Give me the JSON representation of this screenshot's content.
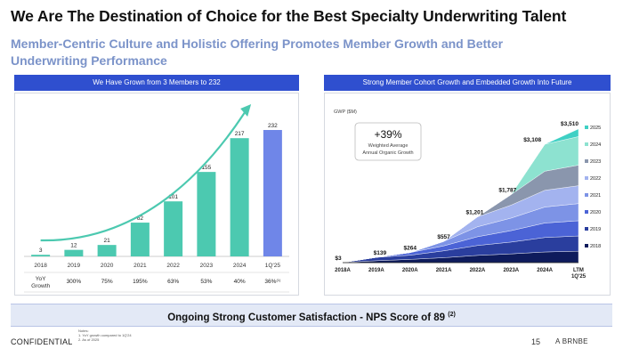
{
  "header": {
    "title": "We Are The Destination of Choice for the Best Specialty Underwriting Talent",
    "subtitle": "Member-Centric Culture and Holistic Offering Promotes Member Growth and Better Underwriting Performance"
  },
  "left_panel": {
    "header": "We Have Grown from 3 Members to 232"
  },
  "right_panel": {
    "header": "Strong Member Cohort Growth and Embedded Growth Into Future"
  },
  "callout": {
    "value": "+39%",
    "line1": "Weighted Average",
    "line2": "Annual Organic Growth"
  },
  "colors": {
    "teal": "#4cc9b0",
    "blue": "#6f86e8",
    "header": "#2f4fcf",
    "navy": "#0e1b5c",
    "cyan": "#3fd0c4"
  },
  "chart_data": [
    {
      "type": "bar",
      "categories": [
        "2018",
        "2019",
        "2020",
        "2021",
        "2022",
        "2023",
        "2024",
        "1Q'25"
      ],
      "values": [
        3,
        12,
        21,
        62,
        101,
        155,
        217,
        232
      ],
      "value_labels": [
        "3",
        "12",
        "21",
        "62",
        "101",
        "155",
        "217",
        "232"
      ],
      "row_label": "YoY\nGrowth",
      "yoy_growth": [
        "",
        "300%",
        "75%",
        "195%",
        "63%",
        "53%",
        "40%",
        "36%"
      ],
      "yoy_footnote_index": 7,
      "yoy_footnote": "(1)",
      "ylim": [
        0,
        250
      ],
      "trend_arrow": true
    },
    {
      "type": "area",
      "unit_label": "GWP ($M)",
      "x": [
        "2018A",
        "2019A",
        "2020A",
        "2021A",
        "2022A",
        "2023A",
        "2024A",
        "LTM 1Q'25"
      ],
      "totals": [
        3,
        139,
        264,
        557,
        1201,
        1787,
        3108,
        3510
      ],
      "total_labels": [
        "$3",
        "$139",
        "$264",
        "$557",
        "$1,201",
        "$1,787",
        "$3,108",
        "$3,510"
      ],
      "ylim": [
        0,
        3600
      ],
      "series": [
        {
          "name": "2018",
          "color": "#0e1b5c",
          "values": [
            3,
            50,
            85,
            130,
            190,
            230,
            280,
            300
          ]
        },
        {
          "name": "2019",
          "color": "#2a3e9e",
          "values": [
            0,
            89,
            110,
            180,
            260,
            310,
            380,
            400
          ]
        },
        {
          "name": "2020",
          "color": "#4b63d6",
          "values": [
            0,
            0,
            69,
            130,
            230,
            300,
            380,
            400
          ]
        },
        {
          "name": "2021",
          "color": "#7d93e6",
          "values": [
            0,
            0,
            0,
            117,
            261,
            330,
            420,
            450
          ]
        },
        {
          "name": "2022",
          "color": "#a3b3ef",
          "values": [
            0,
            0,
            0,
            0,
            260,
            340,
            440,
            470
          ]
        },
        {
          "name": "2023",
          "color": "#8a96ad",
          "values": [
            0,
            0,
            0,
            0,
            0,
            277,
            500,
            540
          ]
        },
        {
          "name": "2024",
          "color": "#8de2d0",
          "values": [
            0,
            0,
            0,
            0,
            0,
            0,
            708,
            750
          ]
        },
        {
          "name": "2025",
          "color": "#3fd0c4",
          "values": [
            0,
            0,
            0,
            0,
            0,
            0,
            0,
            200
          ]
        }
      ]
    }
  ],
  "banner": {
    "text": "Ongoing Strong Customer Satisfaction - NPS Score of 89",
    "footnote": "(2)"
  },
  "footer": {
    "confidential": "CONFIDENTIAL",
    "notes_title": "Notes:",
    "note1": "1.  YoY growth compared to 1Q'24",
    "note2": "2.  As of 2025",
    "page": "15",
    "brand": "A  BRNBE"
  }
}
